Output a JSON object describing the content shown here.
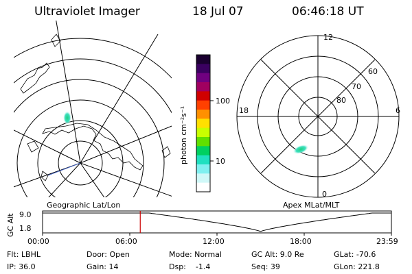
{
  "header": {
    "title": "Ultraviolet Imager",
    "date": "18 Jul 07",
    "time": "06:46:18 UT"
  },
  "geo_panel": {
    "label": "Geographic Lat/Lon"
  },
  "colorbar": {
    "unit_label": "photon cm⁻²s⁻¹",
    "ticks": [
      "100",
      "10"
    ],
    "colors": [
      "#1a0030",
      "#3a0060",
      "#700080",
      "#a00060",
      "#d00000",
      "#ff4000",
      "#ff9000",
      "#ffe000",
      "#c8ff00",
      "#60e000",
      "#00d060",
      "#20e0c0",
      "#80f0f0",
      "#d0f8f8",
      "#ffffff"
    ]
  },
  "polar_panel": {
    "label": "Apex MLat/MLT",
    "mlt_labels": {
      "top": "12",
      "left": "18",
      "right": "6",
      "bottom": "0"
    },
    "lat_labels": [
      "60",
      "70",
      "80"
    ]
  },
  "timeline": {
    "ylabel": "GC Alt",
    "yticks": [
      "9.0",
      "1.8"
    ],
    "xticks": [
      "00:00",
      "06:00",
      "12:00",
      "18:00",
      "23:59"
    ],
    "current_time_fraction": 0.28,
    "marker_color": "#cc0000"
  },
  "info": {
    "col1": [
      "Flt: LBHL",
      "IP: 36.0"
    ],
    "col2": [
      "Door: Open",
      "Gain: 14"
    ],
    "col3": [
      "Mode: Normal",
      "Dsp:    -1.4"
    ],
    "col4": [
      "GC Alt: 9.0 Re",
      "Seq: 39"
    ],
    "col5": [
      "GLat: -70.6",
      "GLon: 221.8"
    ]
  }
}
